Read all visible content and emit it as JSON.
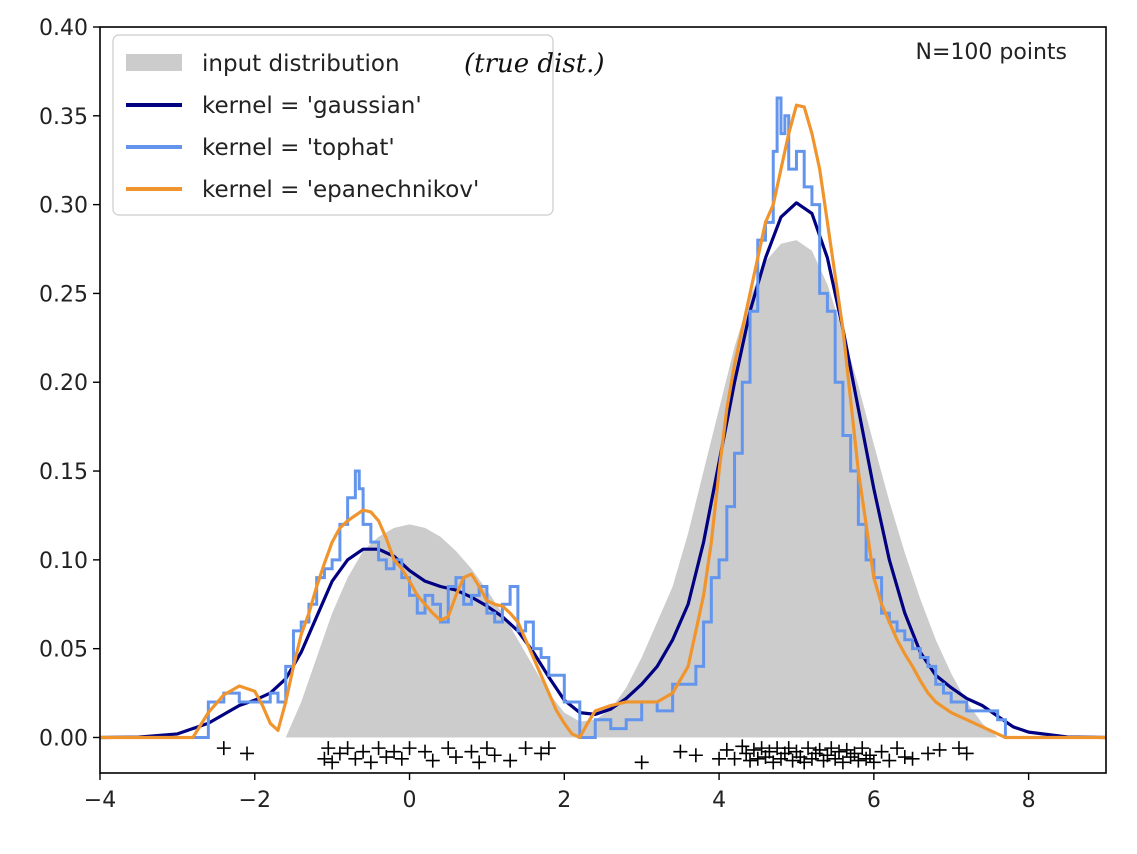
{
  "chart_data": {
    "type": "area",
    "title": "",
    "xlabel": "",
    "ylabel": "",
    "xlim": [
      -4,
      9
    ],
    "ylim": [
      -0.02,
      0.4
    ],
    "x_ticks": [
      -4,
      -2,
      0,
      2,
      4,
      6,
      8
    ],
    "x_tick_labels": [
      "−4",
      "−2",
      "0",
      "2",
      "4",
      "6",
      "8"
    ],
    "y_ticks": [
      0.0,
      0.05,
      0.1,
      0.15,
      0.2,
      0.25,
      0.3,
      0.35,
      0.4
    ],
    "y_tick_labels": [
      "0.00",
      "0.05",
      "0.10",
      "0.15",
      "0.20",
      "0.25",
      "0.30",
      "0.35",
      "0.40"
    ],
    "grid": false,
    "legend_position": "top-left",
    "annotation": "N=100 points",
    "handwritten_note": "(true dist.)",
    "colors": {
      "input": "#cccccc",
      "gaussian": "#000080",
      "tophat": "#6495ed",
      "epanechnikov": "#f0952e",
      "points": "#000000"
    },
    "series": [
      {
        "name": "input distribution",
        "style": "fill",
        "x": [
          -1.6,
          -1.4,
          -1.2,
          -1.0,
          -0.8,
          -0.6,
          -0.4,
          -0.2,
          0.0,
          0.2,
          0.4,
          0.6,
          0.8,
          1.0,
          1.2,
          1.4,
          1.6,
          1.8,
          2.0,
          2.2,
          2.4,
          2.6,
          2.8,
          3.0,
          3.2,
          3.4,
          3.6,
          3.8,
          4.0,
          4.2,
          4.4,
          4.6,
          4.8,
          5.0,
          5.2,
          5.4,
          5.6,
          5.8,
          6.0,
          6.2,
          6.4,
          6.6,
          6.8,
          7.0,
          7.2,
          7.4,
          7.6
        ],
        "values": [
          0.0,
          0.02,
          0.045,
          0.07,
          0.09,
          0.105,
          0.113,
          0.118,
          0.12,
          0.118,
          0.113,
          0.105,
          0.095,
          0.083,
          0.07,
          0.055,
          0.04,
          0.025,
          0.014,
          0.009,
          0.01,
          0.016,
          0.028,
          0.045,
          0.065,
          0.085,
          0.115,
          0.15,
          0.185,
          0.22,
          0.248,
          0.268,
          0.278,
          0.28,
          0.274,
          0.255,
          0.228,
          0.198,
          0.165,
          0.133,
          0.104,
          0.078,
          0.055,
          0.036,
          0.02,
          0.008,
          0.0
        ]
      },
      {
        "name": "kernel = 'gaussian'",
        "style": "line",
        "x": [
          -4,
          -3.5,
          -3.0,
          -2.6,
          -2.4,
          -2.2,
          -2.0,
          -1.8,
          -1.6,
          -1.4,
          -1.2,
          -1.0,
          -0.8,
          -0.6,
          -0.4,
          -0.2,
          0.0,
          0.2,
          0.4,
          0.6,
          0.8,
          1.0,
          1.2,
          1.4,
          1.6,
          1.8,
          2.0,
          2.2,
          2.4,
          2.6,
          2.8,
          3.0,
          3.2,
          3.4,
          3.6,
          3.8,
          4.0,
          4.2,
          4.4,
          4.6,
          4.8,
          5.0,
          5.2,
          5.4,
          5.6,
          5.8,
          6.0,
          6.2,
          6.4,
          6.6,
          6.8,
          7.0,
          7.2,
          7.4,
          7.6,
          7.8,
          8.0,
          8.5,
          9.0
        ],
        "values": [
          0.0,
          0.0002,
          0.002,
          0.008,
          0.013,
          0.018,
          0.021,
          0.025,
          0.033,
          0.048,
          0.068,
          0.088,
          0.1,
          0.106,
          0.106,
          0.102,
          0.094,
          0.088,
          0.085,
          0.083,
          0.079,
          0.074,
          0.068,
          0.06,
          0.048,
          0.034,
          0.021,
          0.014,
          0.013,
          0.016,
          0.022,
          0.03,
          0.04,
          0.055,
          0.075,
          0.11,
          0.155,
          0.2,
          0.24,
          0.27,
          0.293,
          0.301,
          0.295,
          0.27,
          0.23,
          0.185,
          0.14,
          0.1,
          0.07,
          0.048,
          0.035,
          0.028,
          0.022,
          0.018,
          0.012,
          0.006,
          0.003,
          0.0003,
          0.0
        ]
      },
      {
        "name": "kernel = 'tophat'",
        "style": "step",
        "x": [
          -4,
          -2.8,
          -2.6,
          -2.4,
          -2.2,
          -2.0,
          -1.8,
          -1.7,
          -1.6,
          -1.5,
          -1.4,
          -1.3,
          -1.2,
          -1.1,
          -1.0,
          -0.9,
          -0.8,
          -0.7,
          -0.65,
          -0.6,
          -0.5,
          -0.4,
          -0.3,
          -0.2,
          -0.1,
          0.0,
          0.1,
          0.2,
          0.3,
          0.4,
          0.5,
          0.6,
          0.7,
          0.8,
          0.9,
          1.0,
          1.1,
          1.2,
          1.3,
          1.4,
          1.5,
          1.6,
          1.7,
          1.8,
          2.0,
          2.2,
          2.4,
          2.6,
          2.8,
          3.0,
          3.2,
          3.4,
          3.6,
          3.7,
          3.8,
          3.9,
          4.0,
          4.1,
          4.2,
          4.3,
          4.4,
          4.5,
          4.6,
          4.7,
          4.75,
          4.8,
          4.85,
          4.9,
          5.0,
          5.1,
          5.2,
          5.3,
          5.4,
          5.5,
          5.6,
          5.7,
          5.8,
          5.9,
          6.0,
          6.1,
          6.2,
          6.3,
          6.4,
          6.5,
          6.6,
          6.7,
          6.8,
          6.9,
          7.0,
          7.2,
          7.4,
          7.6,
          7.7,
          9.0
        ],
        "values": [
          0.0,
          0.0,
          0.02,
          0.025,
          0.02,
          0.02,
          0.025,
          0.02,
          0.04,
          0.06,
          0.065,
          0.075,
          0.09,
          0.095,
          0.1,
          0.12,
          0.135,
          0.15,
          0.14,
          0.12,
          0.11,
          0.1,
          0.095,
          0.1,
          0.09,
          0.08,
          0.07,
          0.08,
          0.075,
          0.065,
          0.085,
          0.09,
          0.075,
          0.08,
          0.085,
          0.07,
          0.065,
          0.075,
          0.085,
          0.06,
          0.065,
          0.05,
          0.045,
          0.035,
          0.02,
          0.0,
          0.01,
          0.005,
          0.01,
          0.02,
          0.015,
          0.03,
          0.03,
          0.04,
          0.065,
          0.09,
          0.1,
          0.13,
          0.16,
          0.2,
          0.24,
          0.28,
          0.29,
          0.33,
          0.36,
          0.34,
          0.35,
          0.32,
          0.33,
          0.31,
          0.3,
          0.25,
          0.24,
          0.2,
          0.17,
          0.15,
          0.12,
          0.1,
          0.09,
          0.07,
          0.065,
          0.06,
          0.055,
          0.05,
          0.045,
          0.04,
          0.03,
          0.025,
          0.02,
          0.015,
          0.015,
          0.01,
          0.0,
          0.0
        ]
      },
      {
        "name": "kernel = 'epanechnikov'",
        "style": "line",
        "x": [
          -4,
          -2.8,
          -2.6,
          -2.4,
          -2.2,
          -2.0,
          -1.9,
          -1.8,
          -1.7,
          -1.6,
          -1.5,
          -1.4,
          -1.3,
          -1.2,
          -1.1,
          -1.0,
          -0.9,
          -0.8,
          -0.7,
          -0.6,
          -0.5,
          -0.4,
          -0.3,
          -0.2,
          -0.1,
          0.0,
          0.1,
          0.2,
          0.3,
          0.4,
          0.5,
          0.6,
          0.7,
          0.8,
          0.9,
          1.0,
          1.1,
          1.2,
          1.3,
          1.4,
          1.5,
          1.6,
          1.7,
          1.8,
          1.9,
          2.0,
          2.1,
          2.2,
          2.3,
          2.4,
          2.6,
          2.8,
          3.0,
          3.2,
          3.4,
          3.6,
          3.7,
          3.8,
          3.9,
          4.0,
          4.1,
          4.2,
          4.3,
          4.4,
          4.5,
          4.6,
          4.7,
          4.8,
          4.9,
          5.0,
          5.1,
          5.2,
          5.3,
          5.4,
          5.5,
          5.6,
          5.7,
          5.8,
          5.9,
          6.0,
          6.1,
          6.2,
          6.3,
          6.4,
          6.5,
          6.6,
          6.7,
          6.8,
          6.9,
          7.0,
          7.1,
          7.2,
          7.3,
          7.4,
          7.5,
          7.6,
          7.7,
          9.0
        ],
        "values": [
          0.0,
          0.0,
          0.014,
          0.024,
          0.029,
          0.026,
          0.018,
          0.008,
          0.004,
          0.02,
          0.04,
          0.058,
          0.07,
          0.085,
          0.098,
          0.11,
          0.118,
          0.122,
          0.125,
          0.128,
          0.127,
          0.122,
          0.112,
          0.1,
          0.095,
          0.088,
          0.08,
          0.075,
          0.07,
          0.066,
          0.068,
          0.08,
          0.09,
          0.092,
          0.085,
          0.077,
          0.075,
          0.074,
          0.07,
          0.065,
          0.055,
          0.045,
          0.035,
          0.025,
          0.015,
          0.008,
          0.002,
          0.0,
          0.008,
          0.015,
          0.018,
          0.02,
          0.02,
          0.02,
          0.025,
          0.04,
          0.06,
          0.08,
          0.11,
          0.15,
          0.185,
          0.21,
          0.23,
          0.25,
          0.27,
          0.29,
          0.3,
          0.32,
          0.34,
          0.356,
          0.355,
          0.34,
          0.32,
          0.29,
          0.26,
          0.23,
          0.19,
          0.15,
          0.12,
          0.09,
          0.075,
          0.065,
          0.055,
          0.047,
          0.04,
          0.032,
          0.025,
          0.02,
          0.017,
          0.014,
          0.012,
          0.01,
          0.008,
          0.006,
          0.004,
          0.002,
          0.0,
          0.0
        ]
      },
      {
        "name": "points",
        "style": "marker",
        "x": [
          -2.4,
          -2.1,
          -1.1,
          -1.05,
          -1.0,
          -0.9,
          -0.8,
          -0.7,
          -0.6,
          -0.5,
          -0.4,
          -0.3,
          -0.2,
          -0.1,
          0.0,
          0.2,
          0.3,
          0.5,
          0.6,
          0.8,
          0.9,
          1.0,
          1.1,
          1.3,
          1.5,
          1.7,
          1.8,
          3.0,
          3.5,
          3.7,
          4.0,
          4.1,
          4.2,
          4.3,
          4.35,
          4.4,
          4.45,
          4.5,
          4.55,
          4.6,
          4.65,
          4.7,
          4.75,
          4.8,
          4.85,
          4.9,
          4.95,
          5.0,
          5.05,
          5.1,
          5.15,
          5.2,
          5.25,
          5.3,
          5.35,
          5.4,
          5.45,
          5.5,
          5.55,
          5.6,
          5.65,
          5.7,
          5.75,
          5.8,
          5.85,
          5.9,
          5.95,
          6.0,
          6.1,
          6.2,
          6.3,
          6.4,
          6.5,
          6.7,
          6.85,
          7.1,
          7.2
        ],
        "values": [
          -0.006,
          -0.009,
          -0.012,
          -0.006,
          -0.014,
          -0.009,
          -0.006,
          -0.012,
          -0.008,
          -0.014,
          -0.006,
          -0.011,
          -0.008,
          -0.012,
          -0.006,
          -0.008,
          -0.013,
          -0.006,
          -0.011,
          -0.008,
          -0.014,
          -0.006,
          -0.01,
          -0.013,
          -0.006,
          -0.009,
          -0.006,
          -0.014,
          -0.008,
          -0.01,
          -0.012,
          -0.007,
          -0.012,
          -0.005,
          -0.009,
          -0.013,
          -0.007,
          -0.012,
          -0.006,
          -0.011,
          -0.008,
          -0.014,
          -0.006,
          -0.012,
          -0.009,
          -0.006,
          -0.013,
          -0.008,
          -0.011,
          -0.014,
          -0.006,
          -0.012,
          -0.009,
          -0.007,
          -0.013,
          -0.01,
          -0.006,
          -0.012,
          -0.008,
          -0.014,
          -0.007,
          -0.011,
          -0.009,
          -0.013,
          -0.006,
          -0.012,
          -0.01,
          -0.014,
          -0.008,
          -0.013,
          -0.006,
          -0.011,
          -0.012,
          -0.009,
          -0.007,
          -0.006,
          -0.009
        ]
      }
    ]
  }
}
